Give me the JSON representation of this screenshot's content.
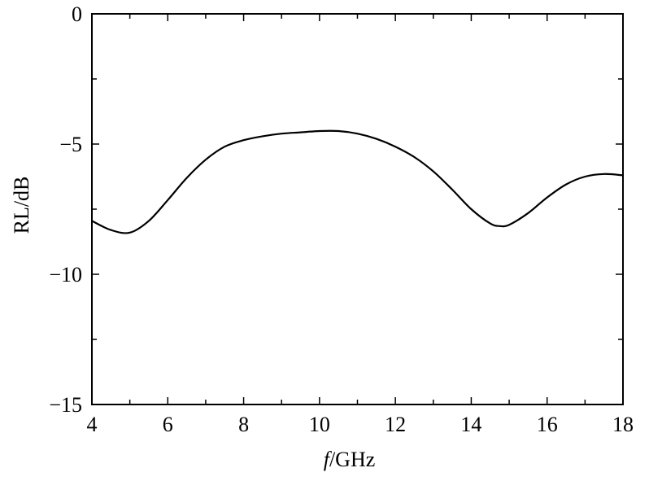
{
  "chart_data": {
    "type": "line",
    "title": "",
    "xlabel_italic": "f",
    "xlabel_rest": "/GHz",
    "ylabel": "RL/dB",
    "xlim": [
      4,
      18
    ],
    "ylim": [
      -15,
      0
    ],
    "x_ticks": [
      4,
      6,
      8,
      10,
      12,
      14,
      16,
      18
    ],
    "y_ticks": [
      0,
      -5,
      -10,
      -15
    ],
    "y_tick_labels": [
      "0",
      "−5",
      "−10",
      "−15"
    ],
    "x_minor_step": 1,
    "y_minor_step": 2.5,
    "grid": false,
    "series": [
      {
        "x": [
          4.0,
          4.5,
          5.0,
          5.5,
          6.0,
          6.5,
          7.0,
          7.5,
          8.0,
          8.5,
          9.0,
          9.5,
          10.0,
          10.5,
          11.0,
          11.5,
          12.0,
          12.5,
          13.0,
          13.5,
          14.0,
          14.5,
          14.75,
          15.0,
          15.5,
          16.0,
          16.5,
          17.0,
          17.5,
          18.0
        ],
        "y": [
          -7.95,
          -8.3,
          -8.4,
          -7.95,
          -7.15,
          -6.3,
          -5.6,
          -5.1,
          -4.85,
          -4.7,
          -4.6,
          -4.55,
          -4.5,
          -4.5,
          -4.6,
          -4.8,
          -5.1,
          -5.5,
          -6.05,
          -6.75,
          -7.5,
          -8.05,
          -8.15,
          -8.1,
          -7.65,
          -7.05,
          -6.55,
          -6.25,
          -6.15,
          -6.2
        ]
      }
    ]
  }
}
